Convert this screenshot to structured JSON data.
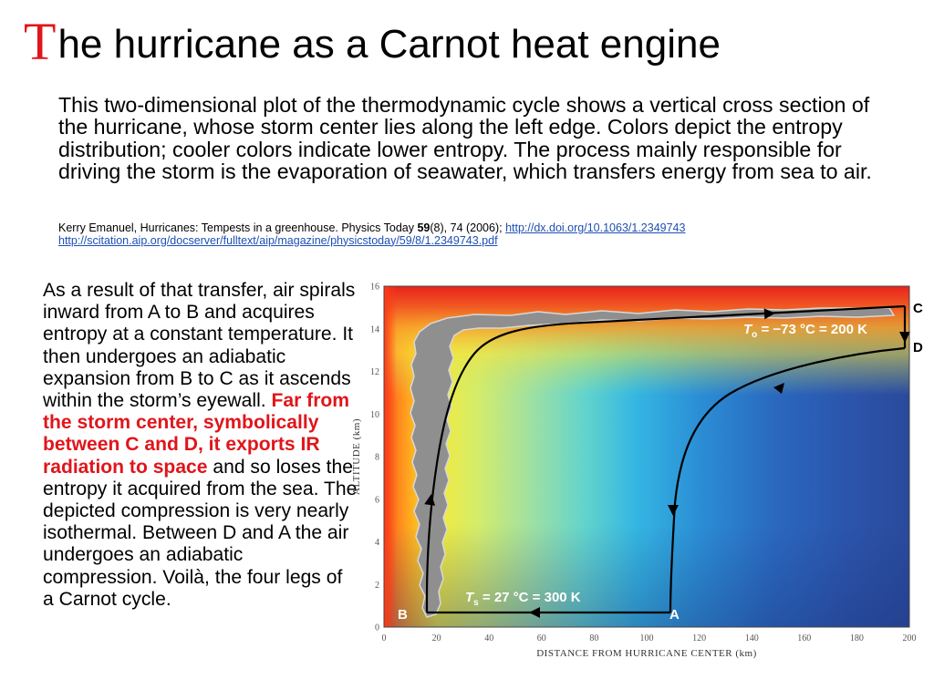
{
  "title": {
    "first_letter": "T",
    "rest": "he hurricane as a Carnot heat engine"
  },
  "intro": "This two-dimensional plot of the thermodynamic cycle shows a vertical cross section of the hurricane, whose storm center lies along the left edge. Colors depict the entropy distribution; cooler colors indicate lower entropy. The process mainly responsible for driving the storm is the evaporation of seawater, which transfers energy from sea to air.",
  "citation": {
    "text_before": "Kerry Emanuel, Hurricanes: Tempests in a greenhouse. Physics Today ",
    "volume": "59",
    "text_after": "(8), 74 (2006); ",
    "doi_link": "http://dx.doi.org/10.1063/1.2349743",
    "pdf_link": "http://scitation.aip.org/docserver/fulltext/aip/magazine/physicstoday/59/8/1.2349743.pdf"
  },
  "body": {
    "part1": "As a result of that transfer, air spirals inward from A to B and acquires entropy at a constant temperature. It then undergoes an adiabatic expansion from B to C as it ascends within the storm’s eyewall. ",
    "highlight": "Far from the storm center, symbolically between C and D, it exports IR radiation to space",
    "part2": " and so loses the entropy it acquired from the sea. The depicted compression is very nearly isothermal. Between D and A the air undergoes an adiabatic compression. Voilà, the four legs of a Carnot cycle."
  },
  "figure": {
    "y_axis_label": "ALTITUDE (km)",
    "x_axis_label": "DISTANCE FROM HURRICANE CENTER (km)",
    "x_ticks": [
      "0",
      "20",
      "40",
      "60",
      "80",
      "100",
      "120",
      "140",
      "160",
      "180",
      "200"
    ],
    "y_ticks": [
      "0",
      "2",
      "4",
      "6",
      "8",
      "10",
      "12",
      "14",
      "16"
    ],
    "points": {
      "A": "A",
      "B": "B",
      "C": "C",
      "D": "D"
    },
    "outflow_annotation": {
      "var": "T",
      "sub": "o",
      "value": " = −73 °C = 200 K"
    },
    "surface_annotation": {
      "var": "T",
      "sub": "s",
      "value": " = 27 °C = 300 K"
    },
    "colors": {
      "highlight_text": "#e0151b",
      "link": "#1e4fb5",
      "cycle_path": "#000000",
      "eyewall_cloud": "#8f8f8f"
    }
  }
}
